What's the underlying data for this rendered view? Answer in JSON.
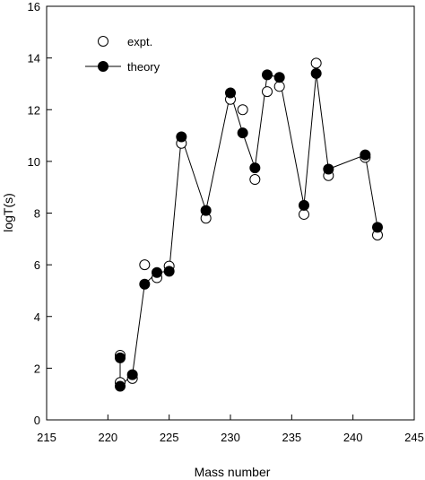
{
  "chart_data": {
    "type": "scatter",
    "title": "",
    "xlabel": "Mass number",
    "ylabel": "logT(s)",
    "xlim": [
      215,
      245
    ],
    "ylim": [
      0,
      16
    ],
    "xticks": [
      215,
      220,
      225,
      230,
      235,
      240,
      245
    ],
    "yticks": [
      0,
      2,
      4,
      6,
      8,
      10,
      12,
      14,
      16
    ],
    "grid": false,
    "legend_position": "top-left",
    "series": [
      {
        "name": "expt.",
        "marker": "open-circle",
        "line": false,
        "x": [
          221,
          221,
          222,
          223,
          224,
          225,
          226,
          228,
          230,
          231,
          232,
          233,
          234,
          236,
          237,
          238,
          241,
          242
        ],
        "y": [
          2.5,
          1.45,
          1.6,
          6.0,
          5.5,
          5.95,
          10.7,
          7.8,
          12.4,
          12.0,
          9.3,
          12.7,
          12.9,
          7.95,
          13.8,
          9.45,
          10.15,
          7.15
        ]
      },
      {
        "name": "theory",
        "marker": "filled-circle",
        "line": true,
        "x": [
          221,
          221,
          222,
          223,
          224,
          225,
          226,
          228,
          230,
          231,
          232,
          233,
          234,
          236,
          237,
          238,
          241,
          242
        ],
        "y": [
          2.4,
          1.3,
          1.75,
          5.25,
          5.7,
          5.75,
          10.95,
          8.1,
          12.65,
          11.1,
          9.75,
          13.35,
          13.25,
          8.3,
          13.4,
          9.7,
          10.25,
          7.45
        ]
      }
    ]
  }
}
